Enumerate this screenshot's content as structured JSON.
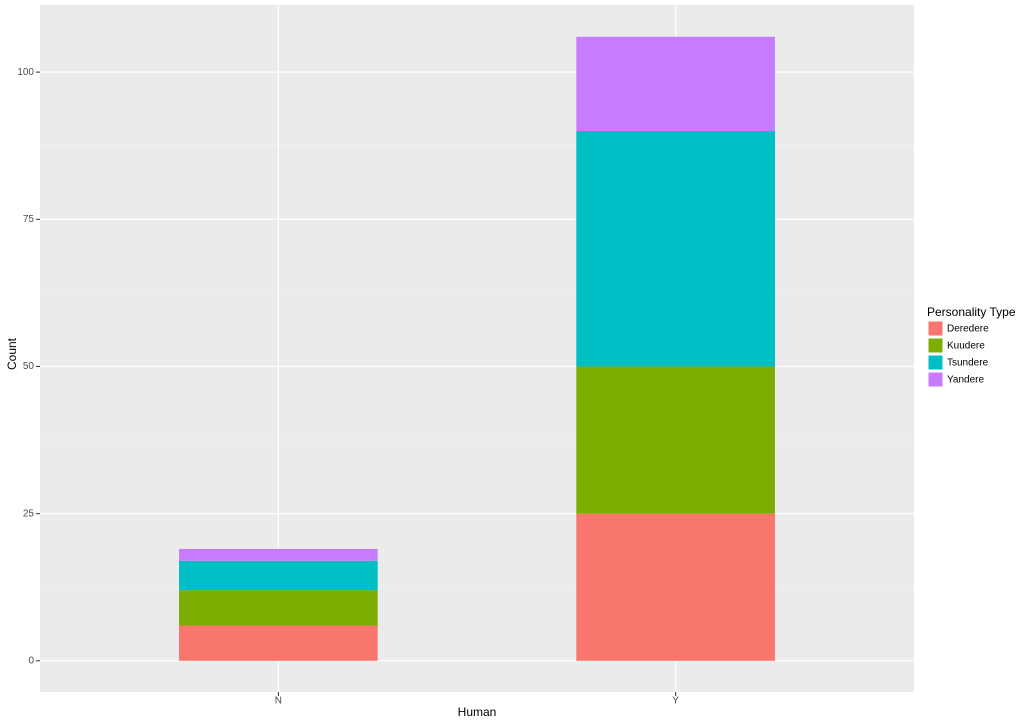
{
  "chart_data": {
    "type": "stacked_bar",
    "x_label": "Human",
    "y_label": "Count",
    "categories": [
      "N",
      "Y"
    ],
    "series": [
      {
        "name": "Deredere",
        "color": "#F8766D",
        "values": [
          6,
          25
        ]
      },
      {
        "name": "Kuudere",
        "color": "#7CAE00",
        "values": [
          6,
          25
        ]
      },
      {
        "name": "Tsundere",
        "color": "#00BFC4",
        "values": [
          5,
          40
        ]
      },
      {
        "name": "Yandere",
        "color": "#C77CFF",
        "values": [
          2,
          16
        ]
      }
    ],
    "ylim": [
      -5.3,
      111.4
    ],
    "yticks": [
      0,
      25,
      50,
      75,
      100
    ],
    "grid": true,
    "legend_title": "Personality Type",
    "legend_position": "right"
  }
}
